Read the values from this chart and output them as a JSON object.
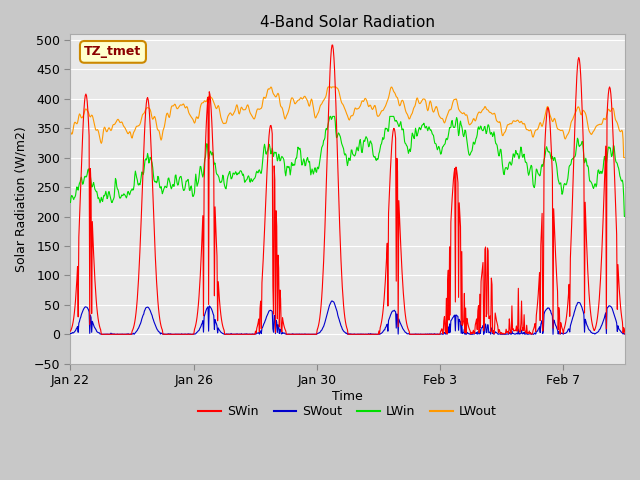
{
  "title": "4-Band Solar Radiation",
  "xlabel": "Time",
  "ylabel": "Solar Radiation (W/m2)",
  "annotation": "TZ_tmet",
  "ylim": [
    -50,
    510
  ],
  "xlim_days": [
    0,
    18
  ],
  "x_ticks_labels": [
    "Jan 22",
    "Jan 26",
    "Jan 30",
    "Feb 3",
    "Feb 7"
  ],
  "x_ticks_pos": [
    0,
    4,
    8,
    12,
    16
  ],
  "fig_bg": "#c8c8c8",
  "plot_bg": "#e8e8e8",
  "line_colors": {
    "SWin": "#ff0000",
    "SWout": "#0000cc",
    "LWin": "#00dd00",
    "LWout": "#ff9900"
  },
  "legend_labels": [
    "SWin",
    "SWout",
    "LWin",
    "LWout"
  ],
  "y_ticks": [
    -50,
    0,
    50,
    100,
    150,
    200,
    250,
    300,
    350,
    400,
    450,
    500
  ],
  "grid_color": "#ffffff",
  "spine_color": "#aaaaaa"
}
